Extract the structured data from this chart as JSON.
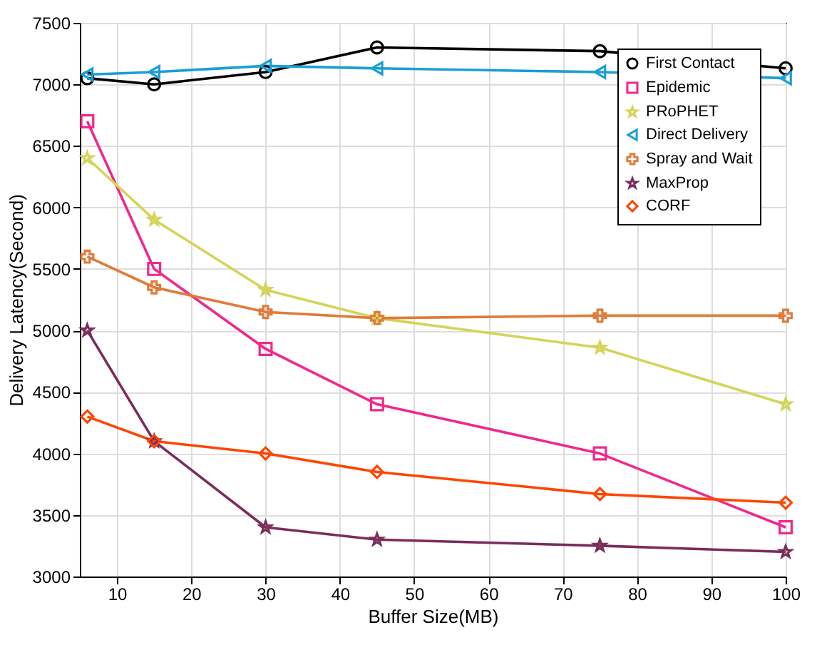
{
  "chart_data": {
    "type": "line",
    "xlabel": "Buffer Size(MB)",
    "ylabel": "Delivery Latency(Second)",
    "xlim": [
      5,
      100
    ],
    "xticks": [
      10,
      20,
      30,
      40,
      50,
      60,
      70,
      80,
      90,
      100
    ],
    "ylim": [
      3000,
      7500
    ],
    "yticks": [
      3000,
      3500,
      4000,
      4500,
      5000,
      5500,
      6000,
      6500,
      7000,
      7500
    ],
    "grid": true,
    "legend": "top right",
    "x": [
      6,
      15,
      30,
      45,
      75,
      100
    ],
    "series": [
      {
        "name": "First Contact",
        "color": "#000000",
        "marker": "circle",
        "values": [
          7050,
          7000,
          7100,
          7300,
          7270,
          7130
        ]
      },
      {
        "name": "Epidemic",
        "color": "#f0288c",
        "marker": "square",
        "values": [
          6700,
          5500,
          4850,
          4400,
          4000,
          3400
        ]
      },
      {
        "name": "PRoPHET",
        "color": "#d4d45a",
        "marker": "star",
        "values": [
          6400,
          5900,
          5330,
          5100,
          4860,
          4400
        ]
      },
      {
        "name": "Direct Delivery",
        "color": "#1a9fd4",
        "marker": "triangle",
        "values": [
          7080,
          7100,
          7150,
          7130,
          7100,
          7050
        ]
      },
      {
        "name": "Spray and Wait",
        "color": "#e07b39",
        "marker": "cross",
        "values": [
          5600,
          5350,
          5150,
          5100,
          5120,
          5120
        ]
      },
      {
        "name": "MaxProp",
        "color": "#7b2d5a",
        "marker": "star",
        "values": [
          5000,
          4100,
          3400,
          3300,
          3250,
          3200
        ]
      },
      {
        "name": "CORF",
        "color": "#ff4500",
        "marker": "diamond",
        "values": [
          4300,
          4100,
          4000,
          3850,
          3670,
          3600
        ]
      }
    ]
  }
}
